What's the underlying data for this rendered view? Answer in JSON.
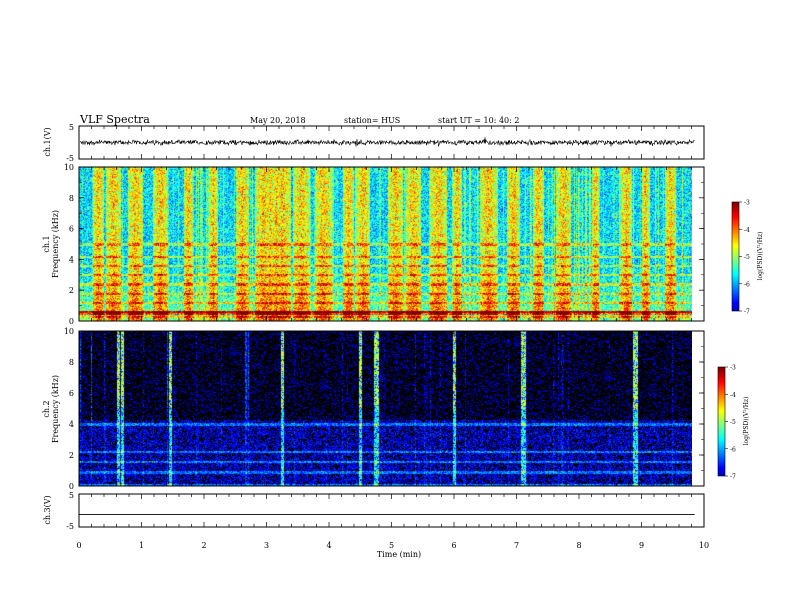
{
  "header": {
    "title": "VLF Spectra",
    "date": "May 20, 2018",
    "station": "station= HUS",
    "start_ut": "start  UT =   10: 40: 2"
  },
  "chart_data": [
    {
      "type": "line",
      "name": "ch1-waveform",
      "ylabel": "ch.1(V)",
      "ylim": [
        -5,
        5
      ],
      "yticks": [
        5,
        -5
      ],
      "xlim": [
        0,
        10
      ],
      "note_signal": {
        "offset_v": 0,
        "amplitude_v": 0.9,
        "end_min": 9.85
      }
    },
    {
      "type": "heatmap",
      "name": "ch1-spectrogram",
      "ylabel_lines": [
        "ch.1",
        "Frequency (kHz)"
      ],
      "ylim": [
        0,
        10
      ],
      "yticks": [
        0,
        2,
        4,
        6,
        8,
        10
      ],
      "xlim": [
        0,
        10
      ],
      "data_end_min": 9.85,
      "colorbar": {
        "label": "log(PSD)(V²/Hz)",
        "ticks": [
          -3,
          -4,
          -5,
          -6,
          -7
        ],
        "range": [
          -7,
          -3
        ]
      },
      "background_level": -5.8,
      "bands_khz": [
        0.3,
        0.6,
        1.2,
        1.8,
        2.4,
        3.0,
        3.6,
        4.2,
        5.0
      ],
      "bright_times_min": [
        0.3,
        0.55,
        0.9,
        1.3,
        1.75,
        2.15,
        2.6,
        2.95,
        3.05,
        3.15,
        3.25,
        3.55,
        3.9,
        4.3,
        4.55,
        5.05,
        5.35,
        5.75,
        6.05,
        6.55,
        6.95,
        7.35,
        7.75,
        8.25,
        8.75,
        9.05,
        9.45
      ]
    },
    {
      "type": "heatmap",
      "name": "ch2-spectrogram",
      "ylabel_lines": [
        "ch.2",
        "Frequency (kHz)"
      ],
      "ylim": [
        0,
        10
      ],
      "yticks": [
        0,
        2,
        4,
        6,
        8,
        10
      ],
      "xlim": [
        0,
        10
      ],
      "data_end_min": 9.85,
      "colorbar": {
        "label": "log(PSD)(V²/Hz)",
        "ticks": [
          -3,
          -4,
          -5,
          -6,
          -7
        ],
        "range": [
          -7,
          -3
        ]
      },
      "background_level": -6.9,
      "bands_khz": [
        0.1,
        0.9,
        1.6,
        2.2,
        4.0
      ],
      "bright_times_min": [
        0.63,
        0.68,
        1.45,
        3.25,
        4.5,
        4.75,
        6.0,
        7.1,
        8.9,
        9.85
      ]
    },
    {
      "type": "line",
      "name": "ch3-waveform",
      "ylabel": "ch.3(V)",
      "ylim": [
        -5,
        5
      ],
      "yticks": [
        5,
        -5
      ],
      "xlim": [
        0,
        10
      ],
      "xticks": [
        0,
        1,
        2,
        3,
        4,
        5,
        6,
        7,
        8,
        9,
        10
      ],
      "xlabel": "Time  (min)",
      "note_signal": {
        "offset_v": -1.2,
        "amplitude_v": 0,
        "end_min": 9.85
      }
    }
  ]
}
